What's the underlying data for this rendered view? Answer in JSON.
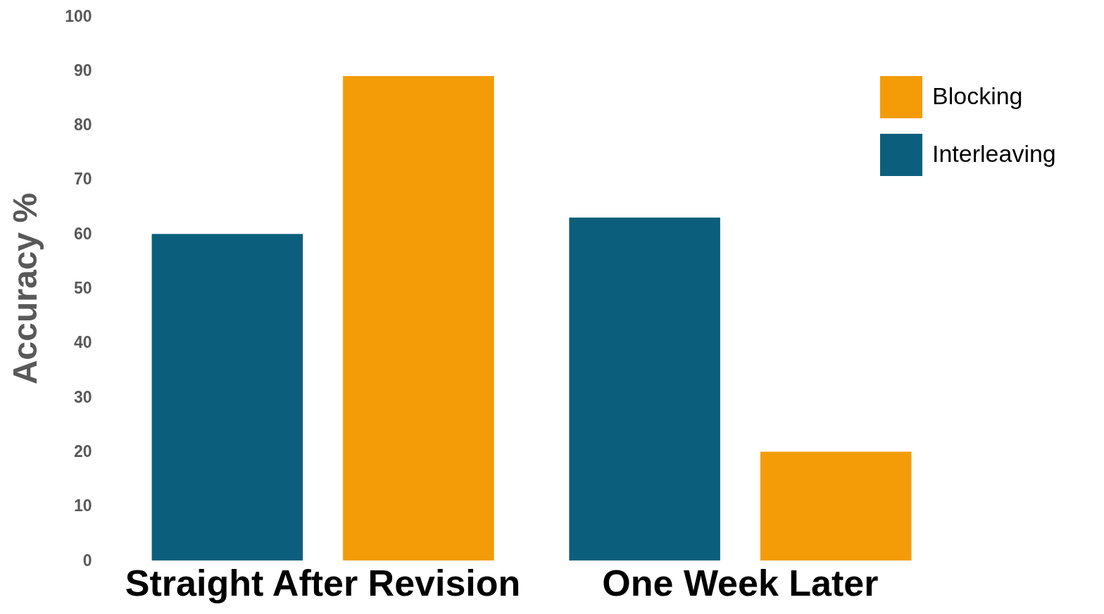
{
  "chart_data": {
    "type": "bar",
    "ylabel": "Accuracy  %",
    "categories": [
      "Straight After Revision",
      "One Week Later"
    ],
    "series": [
      {
        "name": "Interleaving",
        "color": "#0b5f7c",
        "values": [
          60,
          63
        ]
      },
      {
        "name": "Blocking",
        "color": "#f39c07",
        "values": [
          89,
          20
        ]
      }
    ],
    "ylim": [
      0,
      100
    ],
    "yticks": [
      0,
      10,
      20,
      30,
      40,
      50,
      60,
      70,
      80,
      90,
      100
    ],
    "legend": "top right"
  }
}
